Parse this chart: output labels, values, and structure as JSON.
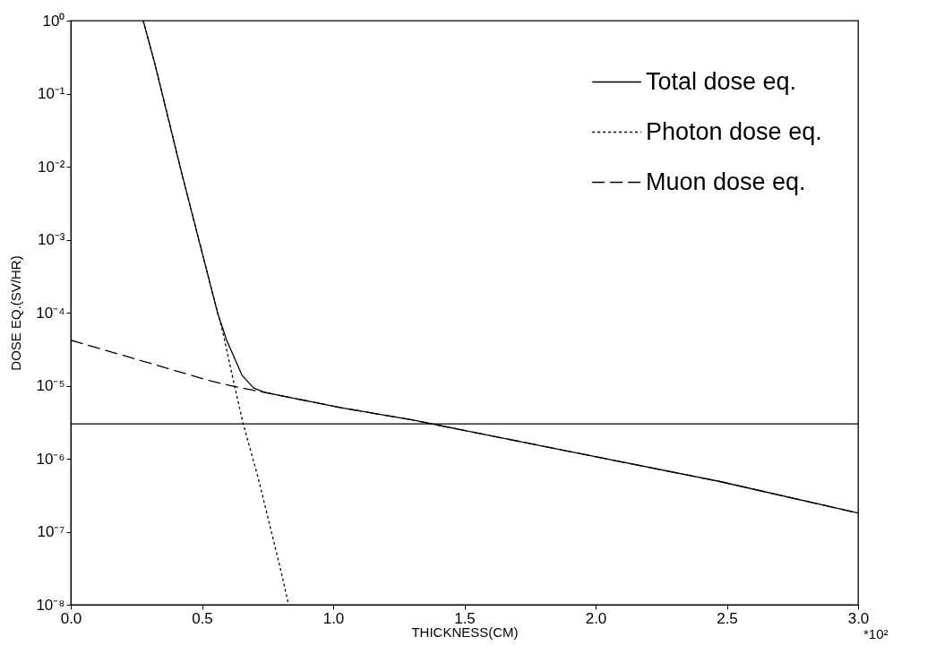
{
  "chart_data": {
    "type": "line",
    "xlabel": "THICKNESS(CM)",
    "ylabel": "DOSE EQ.(SV/HR)",
    "annotations": [
      "*10²"
    ],
    "xlim": [
      0,
      3.0
    ],
    "ylim": [
      1e-08,
      1
    ],
    "log": "y",
    "grid": false,
    "legend": "top right",
    "xticks": [
      {
        "value": 0,
        "label": "0.0"
      },
      {
        "value": 0.5,
        "label": "0.5"
      },
      {
        "value": 1,
        "label": "1.0"
      },
      {
        "value": 1.5,
        "label": "1.5"
      },
      {
        "value": 2,
        "label": "2.0"
      },
      {
        "value": 2.5,
        "label": "2.5"
      },
      {
        "value": 3,
        "label": "3.0"
      }
    ],
    "yticks": [
      {
        "value": 1e-08,
        "label": "10⁻⁸"
      },
      {
        "value": 1e-07,
        "label": "10⁻⁷"
      },
      {
        "value": 1e-06,
        "label": "10⁻⁶"
      },
      {
        "value": 1e-05,
        "label": "10⁻⁵"
      },
      {
        "value": 0.0001,
        "label": "10⁻⁴"
      },
      {
        "value": 0.001,
        "label": "10⁻³"
      },
      {
        "value": 0.01,
        "label": "10⁻²"
      },
      {
        "value": 0.1,
        "label": "10⁻¹"
      },
      {
        "value": 1,
        "label": "10⁰"
      }
    ],
    "ref_lines": [
      {
        "axis": "y",
        "value": 3e-06,
        "color": "#000000"
      }
    ],
    "series": [
      {
        "name": "Total dose eq.",
        "color": "#000000",
        "line_style": "solid",
        "x": [
          0.276,
          0.32,
          0.42,
          0.56,
          0.594,
          0.652,
          0.697,
          0.737,
          1.03,
          1.3,
          1.98,
          2.47,
          3.0
        ],
        "values": [
          1,
          0.26,
          0.0089,
          9.8e-05,
          4.2e-05,
          1.4e-05,
          9.3e-06,
          8.1e-06,
          5e-06,
          3.4e-06,
          1.1e-06,
          4.9e-07,
          1.8e-07
        ]
      },
      {
        "name": "Photon dose eq.",
        "color": "#000000",
        "line_style": "dotted",
        "x": [
          0.276,
          0.32,
          0.42,
          0.56,
          0.577,
          0.624,
          0.657,
          0.714,
          0.8,
          0.83
        ],
        "values": [
          1,
          0.26,
          0.0089,
          9.8e-05,
          5.9e-05,
          1e-05,
          3e-06,
          5.5e-07,
          3e-08,
          1e-08
        ]
      },
      {
        "name": "Muon dose eq.",
        "color": "#000000",
        "line_style": "dashed",
        "x": [
          0,
          0.25,
          0.53,
          0.62,
          0.737,
          1.03,
          1.3,
          1.98,
          2.47,
          3.0
        ],
        "values": [
          4.2e-05,
          2.3e-05,
          1.17e-05,
          9.8e-06,
          8.1e-06,
          5e-06,
          3.4e-06,
          1.1e-06,
          4.9e-07,
          1.8e-07
        ]
      }
    ]
  }
}
